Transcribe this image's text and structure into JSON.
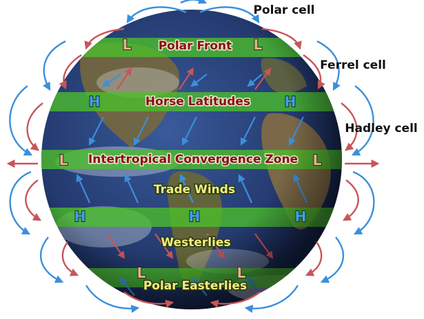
{
  "cells": {
    "polar": "Polar cell",
    "ferrel": "Ferrel cell",
    "hadley": "Hadley cell"
  },
  "bands": {
    "polar_front": "Polar Front",
    "horse_latitudes": "Horse Latitudes",
    "itcz": "Intertropical Convergence Zone",
    "trade_winds": "Trade Winds",
    "westerlies": "Westerlies",
    "polar_easterlies": "Polar Easterlies"
  },
  "pressure": {
    "low": "L",
    "high": "H"
  },
  "colors": {
    "cold_arrow": "#3a8fdc",
    "warm_arrow": "#c9545a",
    "green_band": "#4cbf2a",
    "label_warm_text": "#8b0d18",
    "label_cool_text": "#f2ee7a",
    "low_marker": "#e8b08a",
    "high_marker": "#3aa0e8",
    "ocean": "#27407a"
  }
}
